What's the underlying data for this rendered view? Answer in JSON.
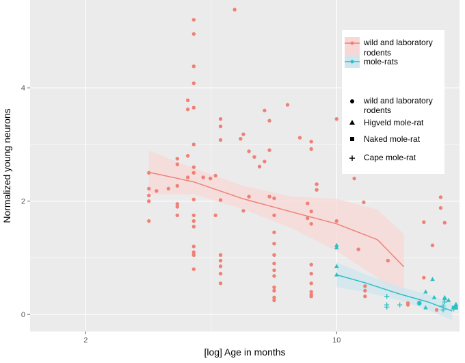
{
  "chart_data": {
    "type": "scatter",
    "xscale": "log",
    "xlabel": "[log] Age in months",
    "ylabel": "Normalized young neurons",
    "xlim": [
      1.4,
      22
    ],
    "ylim": [
      -0.3,
      5.55
    ],
    "xticks": [
      {
        "value": 2,
        "label": "2"
      },
      {
        "value": 10,
        "label": "10"
      }
    ],
    "yticks": [
      {
        "value": 0,
        "label": "0"
      },
      {
        "value": 2,
        "label": "2"
      },
      {
        "value": 4,
        "label": "4"
      }
    ],
    "colors": {
      "rodents": "#F08076",
      "molerats": "#2EBFC4",
      "band_rodents": "#F7D8D6",
      "band_molerats": "#CFE6EE",
      "panel": "#EBEBEB",
      "grid": "#FFFFFF"
    },
    "legend": {
      "position": "right",
      "lines": [
        {
          "label_lines": [
            "wild and laboratory",
            "rodents"
          ],
          "color": "#F08076",
          "fill": "#F7D8D6"
        },
        {
          "label_lines": [
            "mole-rats"
          ],
          "color": "#2EBFC4",
          "fill": "#CFE6EE"
        }
      ],
      "shapes": [
        {
          "label_lines": [
            "wild and laboratory",
            "rodents"
          ],
          "shape": "circle"
        },
        {
          "label_lines": [
            "Higveld mole-rat"
          ],
          "shape": "triangle"
        },
        {
          "label_lines": [
            "Naked mole-rat"
          ],
          "shape": "square"
        },
        {
          "label_lines": [
            "Cape mole-rat"
          ],
          "shape": "plus"
        }
      ]
    },
    "trendlines": [
      {
        "name": "wild and laboratory rodents",
        "color": "#F08076",
        "fill": "#F7D8D6",
        "x": [
          3.0,
          4.0,
          5.5,
          7.5,
          10,
          13,
          15.4
        ],
        "fit": [
          2.51,
          2.34,
          2.04,
          1.81,
          1.6,
          1.32,
          0.84
        ],
        "lower": [
          2.12,
          2.12,
          1.86,
          1.52,
          1.12,
          0.65,
          0.3
        ],
        "upper": [
          2.89,
          2.58,
          2.27,
          2.08,
          2.04,
          1.85,
          1.42
        ]
      },
      {
        "name": "mole-rats",
        "color": "#2EBFC4",
        "fill": "#CFE6EE",
        "x": [
          10.0,
          12.0,
          15.0,
          18.0,
          21.0
        ],
        "fit": [
          0.7,
          0.56,
          0.36,
          0.22,
          0.06
        ],
        "lower": [
          0.48,
          0.4,
          0.25,
          0.08,
          -0.1
        ],
        "upper": [
          0.92,
          0.71,
          0.49,
          0.35,
          0.2
        ]
      }
    ],
    "series": [
      {
        "name": "wild and laboratory rodents",
        "shape": "circle",
        "color": "#F08076",
        "points": [
          [
            3.0,
            1.65
          ],
          [
            3.0,
            2.0
          ],
          [
            3.0,
            2.1
          ],
          [
            3.0,
            2.22
          ],
          [
            3.0,
            2.5
          ],
          [
            3.15,
            2.18
          ],
          [
            3.4,
            2.22
          ],
          [
            3.6,
            2.27
          ],
          [
            3.6,
            2.65
          ],
          [
            3.6,
            2.75
          ],
          [
            3.6,
            1.95
          ],
          [
            3.6,
            1.9
          ],
          [
            3.6,
            1.75
          ],
          [
            3.85,
            3.78
          ],
          [
            3.85,
            3.62
          ],
          [
            3.85,
            2.8
          ],
          [
            3.85,
            2.42
          ],
          [
            4.0,
            5.2
          ],
          [
            4.0,
            4.95
          ],
          [
            4.0,
            4.38
          ],
          [
            4.0,
            4.08
          ],
          [
            4.0,
            3.65
          ],
          [
            4.0,
            3.0
          ],
          [
            4.0,
            2.6
          ],
          [
            4.0,
            2.5
          ],
          [
            4.0,
            2.03
          ],
          [
            4.0,
            1.75
          ],
          [
            4.0,
            1.65
          ],
          [
            4.0,
            1.55
          ],
          [
            4.0,
            1.2
          ],
          [
            4.0,
            1.1
          ],
          [
            4.0,
            1.05
          ],
          [
            4.0,
            1.05
          ],
          [
            4.0,
            0.8
          ],
          [
            4.25,
            2.42
          ],
          [
            4.45,
            2.4
          ],
          [
            4.6,
            1.75
          ],
          [
            4.6,
            2.45
          ],
          [
            4.75,
            3.45
          ],
          [
            4.75,
            3.32
          ],
          [
            4.75,
            3.08
          ],
          [
            4.75,
            2.02
          ],
          [
            4.75,
            1.05
          ],
          [
            4.75,
            0.95
          ],
          [
            4.75,
            0.85
          ],
          [
            4.75,
            0.72
          ],
          [
            4.75,
            0.55
          ],
          [
            5.2,
            5.38
          ],
          [
            5.4,
            3.1
          ],
          [
            5.5,
            3.18
          ],
          [
            5.5,
            1.83
          ],
          [
            5.7,
            2.88
          ],
          [
            5.7,
            2.08
          ],
          [
            5.9,
            2.78
          ],
          [
            6.1,
            2.61
          ],
          [
            6.3,
            3.6
          ],
          [
            6.3,
            2.7
          ],
          [
            6.5,
            3.42
          ],
          [
            6.5,
            2.9
          ],
          [
            6.5,
            2.08
          ],
          [
            6.7,
            2.05
          ],
          [
            6.7,
            1.75
          ],
          [
            6.7,
            1.45
          ],
          [
            6.7,
            1.25
          ],
          [
            6.7,
            1.05
          ],
          [
            6.7,
            0.9
          ],
          [
            6.7,
            0.78
          ],
          [
            6.7,
            0.68
          ],
          [
            6.7,
            0.48
          ],
          [
            6.7,
            0.42
          ],
          [
            6.7,
            0.3
          ],
          [
            6.7,
            0.25
          ],
          [
            7.3,
            3.7
          ],
          [
            7.9,
            3.12
          ],
          [
            8.3,
            1.96
          ],
          [
            8.3,
            1.7
          ],
          [
            8.5,
            3.05
          ],
          [
            8.5,
            2.92
          ],
          [
            8.5,
            1.82
          ],
          [
            8.5,
            1.6
          ],
          [
            8.5,
            0.88
          ],
          [
            8.5,
            0.72
          ],
          [
            8.5,
            0.55
          ],
          [
            8.5,
            0.4
          ],
          [
            8.5,
            0.35
          ],
          [
            8.5,
            0.32
          ],
          [
            8.8,
            2.3
          ],
          [
            8.8,
            2.2
          ],
          [
            10.0,
            3.45
          ],
          [
            10.0,
            1.65
          ],
          [
            11.2,
            2.4
          ],
          [
            11.5,
            1.15
          ],
          [
            11.9,
            1.98
          ],
          [
            12.0,
            4.07
          ],
          [
            12.0,
            0.5
          ],
          [
            12.0,
            0.42
          ],
          [
            12.0,
            0.32
          ],
          [
            13.9,
            0.95
          ],
          [
            15.8,
            0.2
          ],
          [
            15.8,
            0.17
          ],
          [
            17.5,
            1.63
          ],
          [
            17.5,
            0.65
          ],
          [
            18.5,
            1.22
          ],
          [
            19.0,
            0.08
          ],
          [
            19.5,
            2.07
          ],
          [
            19.5,
            1.88
          ],
          [
            20.0,
            1.62
          ]
        ]
      },
      {
        "name": "Higveld mole-rat",
        "shape": "triangle",
        "color": "#2EBFC4",
        "points": [
          [
            10.0,
            1.22
          ],
          [
            10.0,
            1.18
          ],
          [
            10.0,
            0.85
          ],
          [
            10.0,
            0.7
          ],
          [
            17.7,
            0.4
          ],
          [
            17.7,
            0.12
          ],
          [
            18.5,
            0.62
          ],
          [
            18.7,
            0.3
          ],
          [
            20.0,
            0.3
          ],
          [
            20.0,
            0.28
          ],
          [
            20.5,
            0.25
          ],
          [
            21.5,
            0.18
          ],
          [
            21.5,
            0.12
          ]
        ]
      },
      {
        "name": "Naked mole-rat",
        "shape": "square",
        "color": "#2EBFC4",
        "points": [
          [
            17.0,
            0.2
          ],
          [
            21.2,
            0.12
          ],
          [
            21.5,
            0.12
          ]
        ]
      },
      {
        "name": "Cape mole-rat",
        "shape": "plus",
        "color": "#2EBFC4",
        "points": [
          [
            13.8,
            0.32
          ],
          [
            13.8,
            0.17
          ],
          [
            13.8,
            0.13
          ],
          [
            15.0,
            0.17
          ],
          [
            17.0,
            0.2
          ],
          [
            19.8,
            0.15
          ],
          [
            19.8,
            0.08
          ],
          [
            20.0,
            0.22
          ],
          [
            21.2,
            0.1
          ]
        ]
      }
    ]
  }
}
